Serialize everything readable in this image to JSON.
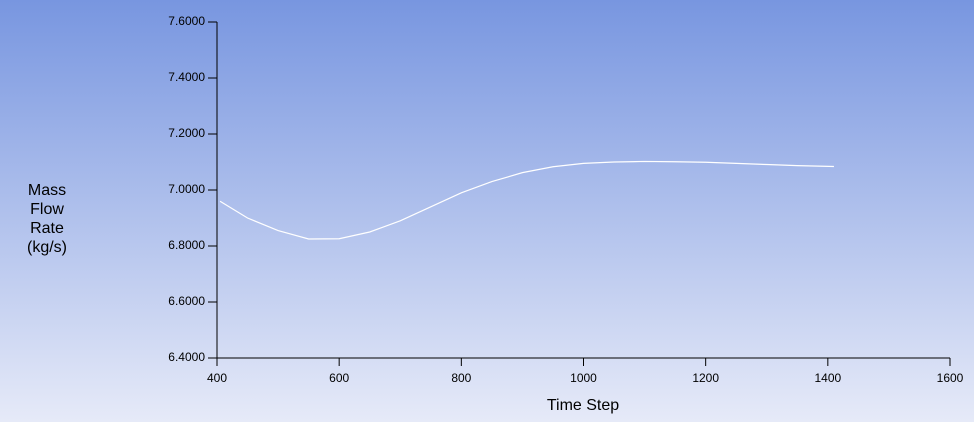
{
  "chart_data": {
    "type": "line",
    "ylabel": [
      "Mass",
      "Flow",
      "Rate",
      "(kg/s)"
    ],
    "xlabel": "Time Step",
    "x": [
      405,
      450,
      500,
      550,
      600,
      650,
      700,
      750,
      800,
      850,
      900,
      950,
      1000,
      1050,
      1100,
      1150,
      1200,
      1250,
      1300,
      1350,
      1410
    ],
    "series": [
      {
        "color": "#ffffff",
        "values": [
          6.96,
          6.9,
          6.855,
          6.825,
          6.826,
          6.85,
          6.89,
          6.94,
          6.99,
          7.03,
          7.062,
          7.083,
          7.095,
          7.1,
          7.102,
          7.101,
          7.099,
          7.095,
          7.091,
          7.087,
          7.084
        ]
      }
    ],
    "xlim": [
      400,
      1600
    ],
    "xticks": [
      400,
      600,
      800,
      1000,
      1200,
      1400,
      1600
    ],
    "ylim": [
      6.4,
      7.6
    ],
    "yticks": [
      {
        "value": 6.4,
        "label": "6.4000"
      },
      {
        "value": 6.6,
        "label": "6.6000"
      },
      {
        "value": 6.8,
        "label": "6.8000"
      },
      {
        "value": 7.0,
        "label": "7.0000"
      },
      {
        "value": 7.2,
        "label": "7.2000"
      },
      {
        "value": 7.4,
        "label": "7.4000"
      },
      {
        "value": 7.6,
        "label": "7.6000"
      }
    ]
  }
}
